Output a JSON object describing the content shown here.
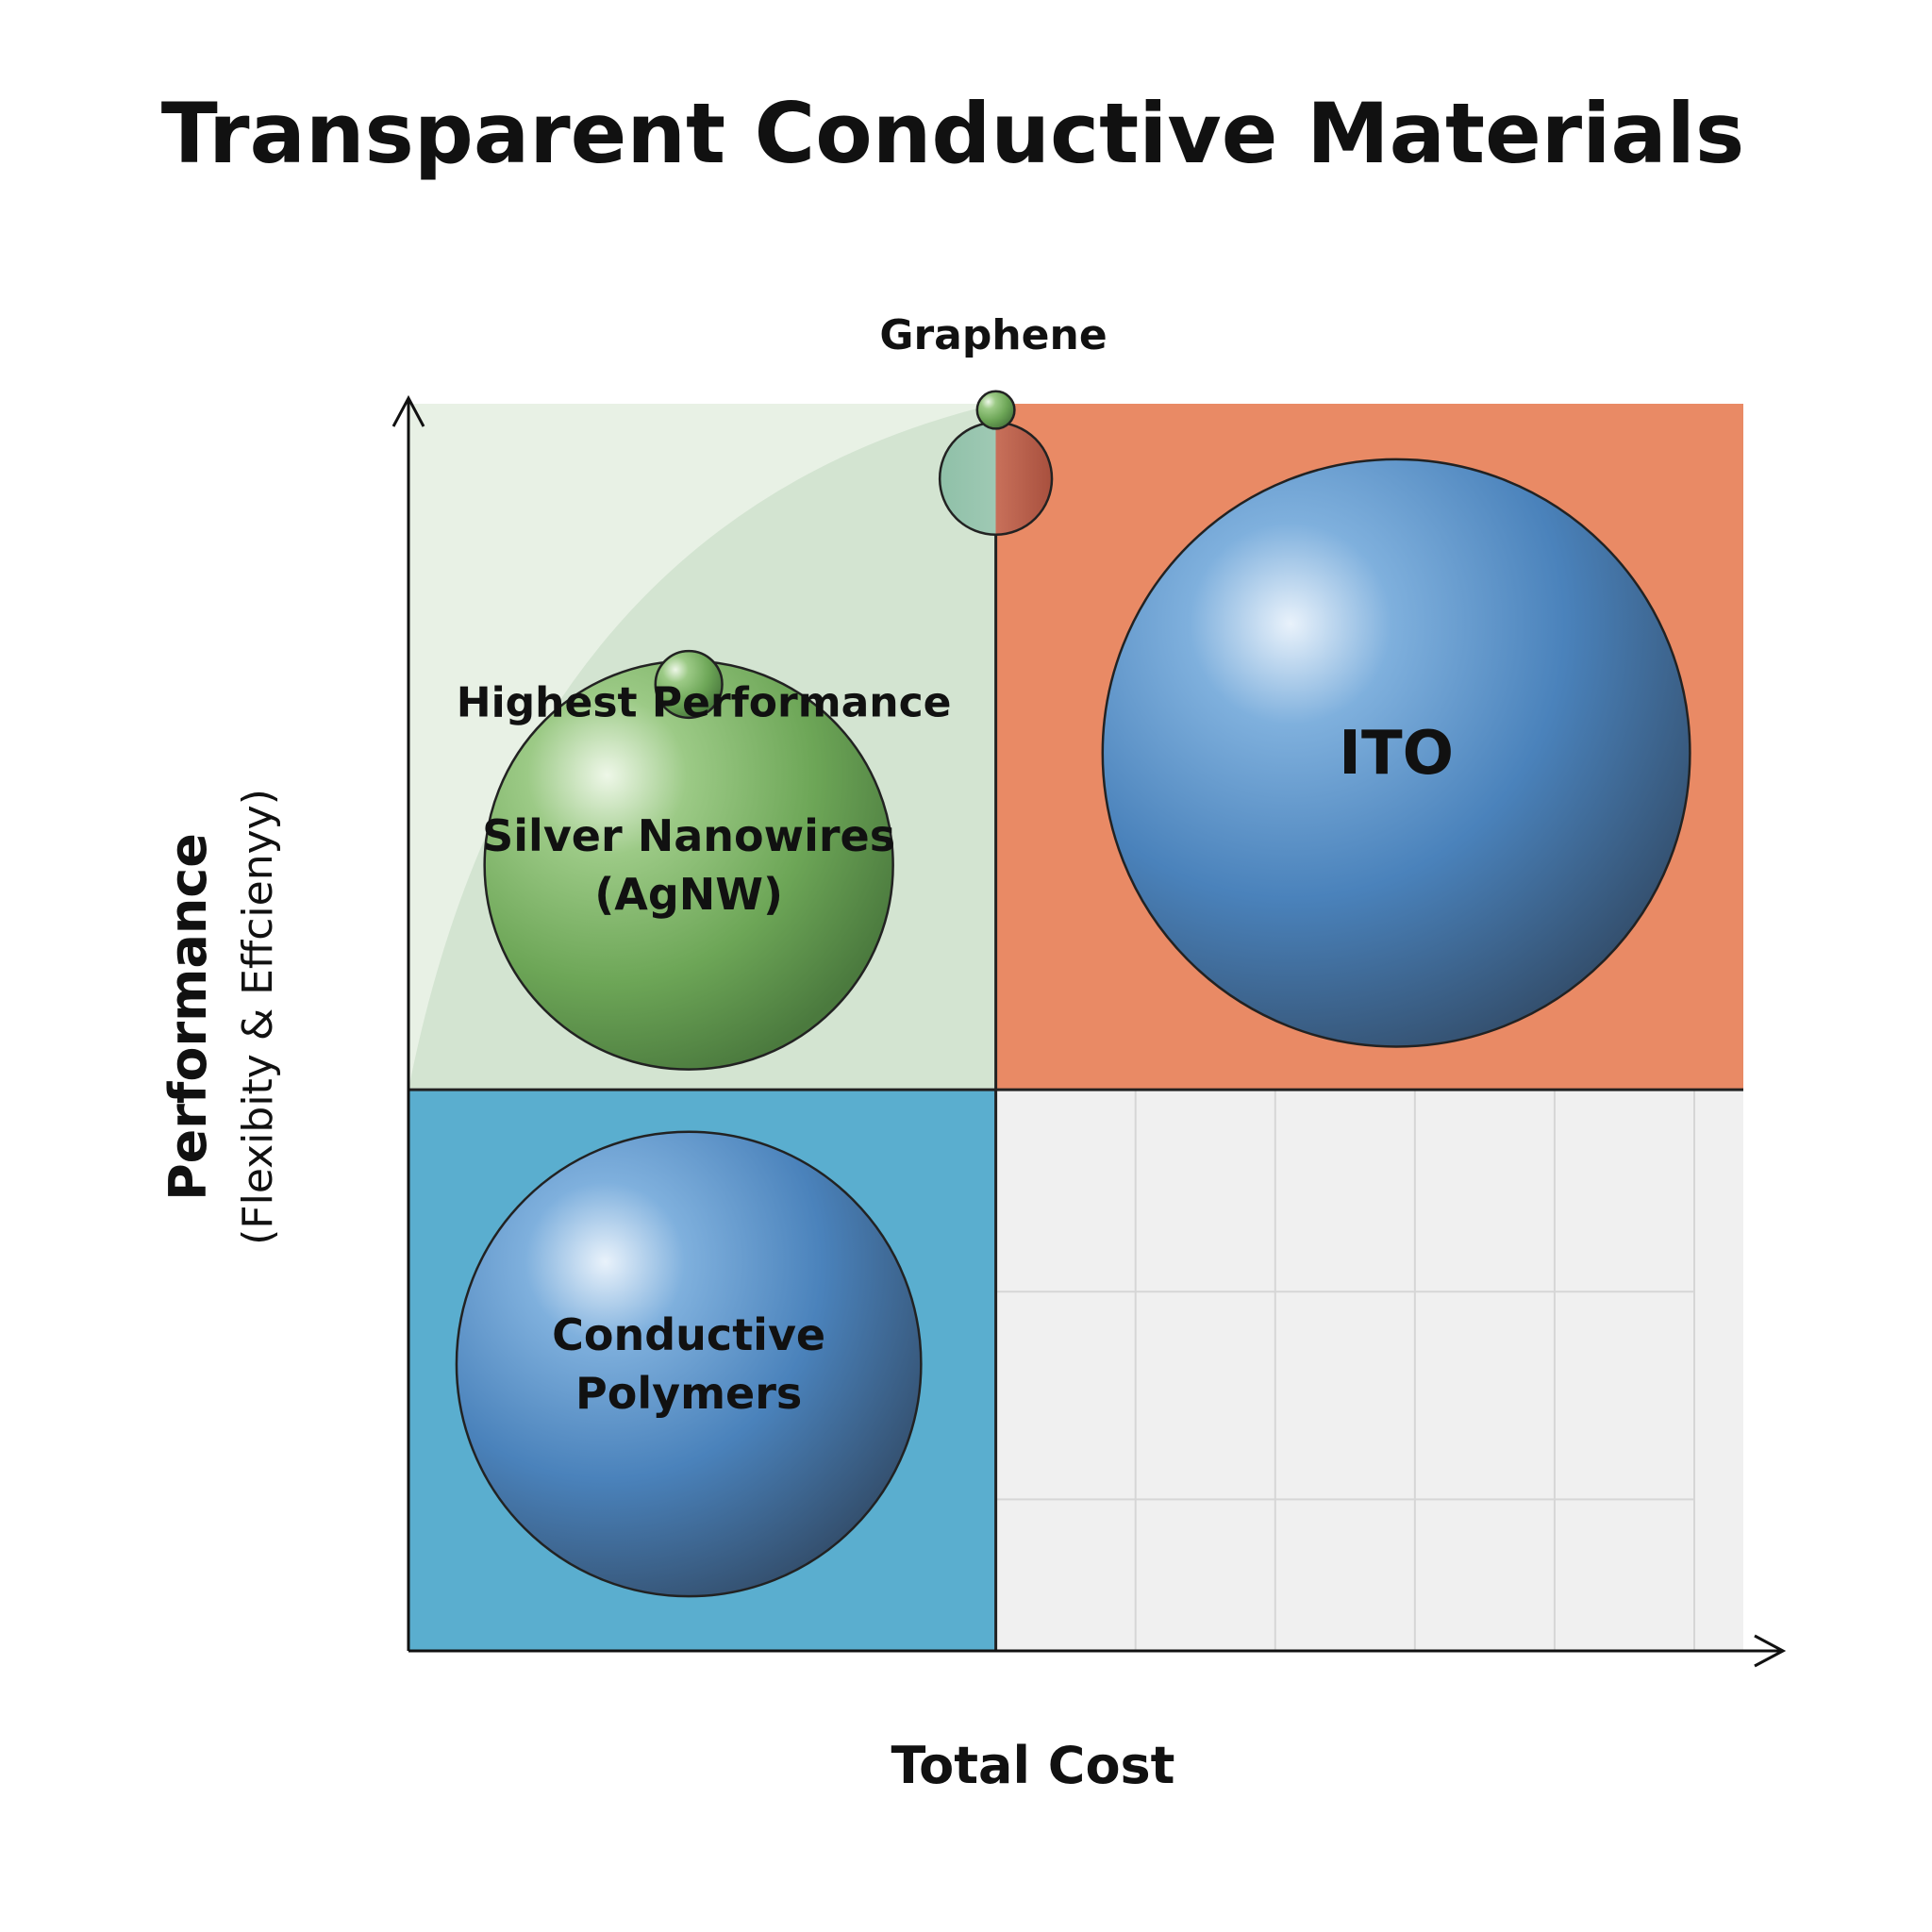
{
  "chart_data": {
    "type": "bubble",
    "title": "Transparent Conductive Materials",
    "xlabel": "Total Cost",
    "ylabel": "Performance",
    "ylabel_sub": "(Flexibity & Effcienyy)",
    "xlim": [
      0,
      100
    ],
    "ylim": [
      0,
      100
    ],
    "annotations": [
      {
        "text": "Highest Performance",
        "x": 21,
        "y": 76
      }
    ],
    "quadrants": [
      {
        "name": "top-left",
        "x0": 0,
        "x1": 44,
        "y0": 45,
        "y1": 100,
        "color": "#d3e4d1"
      },
      {
        "name": "top-right",
        "x0": 44,
        "x1": 100,
        "y0": 45,
        "y1": 100,
        "color": "#e98a65"
      },
      {
        "name": "bottom-left",
        "x0": 0,
        "x1": 44,
        "y0": 0,
        "y1": 45,
        "color": "#5aaecf"
      },
      {
        "name": "bottom-right",
        "x0": 44,
        "x1": 100,
        "y0": 0,
        "y1": 45,
        "color": "#f0f0f0"
      }
    ],
    "bubbles": [
      {
        "name": "ITO",
        "label_lines": [
          "ITO"
        ],
        "x": 74,
        "y": 72,
        "size": 22,
        "color": "blue"
      },
      {
        "name": "Silver Nanowires",
        "label_lines": [
          "Silver Nanowires",
          "(AgNW)"
        ],
        "x": 21,
        "y": 63,
        "size": 15.3,
        "color": "green"
      },
      {
        "name": "Conductive Polymers",
        "label_lines": [
          "Conductive",
          "Polymers"
        ],
        "x": 21,
        "y": 23,
        "size": 17.4,
        "color": "blue"
      },
      {
        "name": "Graphene",
        "label_lines": [],
        "x": 44,
        "y": 94,
        "size": 4.2,
        "color": "split"
      },
      {
        "name": "graphene-top-dot",
        "label_lines": [],
        "x": 44,
        "y": 99.5,
        "size": 1.4,
        "color": "green"
      },
      {
        "name": "agnw-dot",
        "label_lines": [],
        "x": 21,
        "y": 77.5,
        "size": 2.5,
        "color": "green"
      }
    ],
    "bubble_callout": {
      "text": "Graphene"
    },
    "grid": true,
    "legend": "none"
  }
}
